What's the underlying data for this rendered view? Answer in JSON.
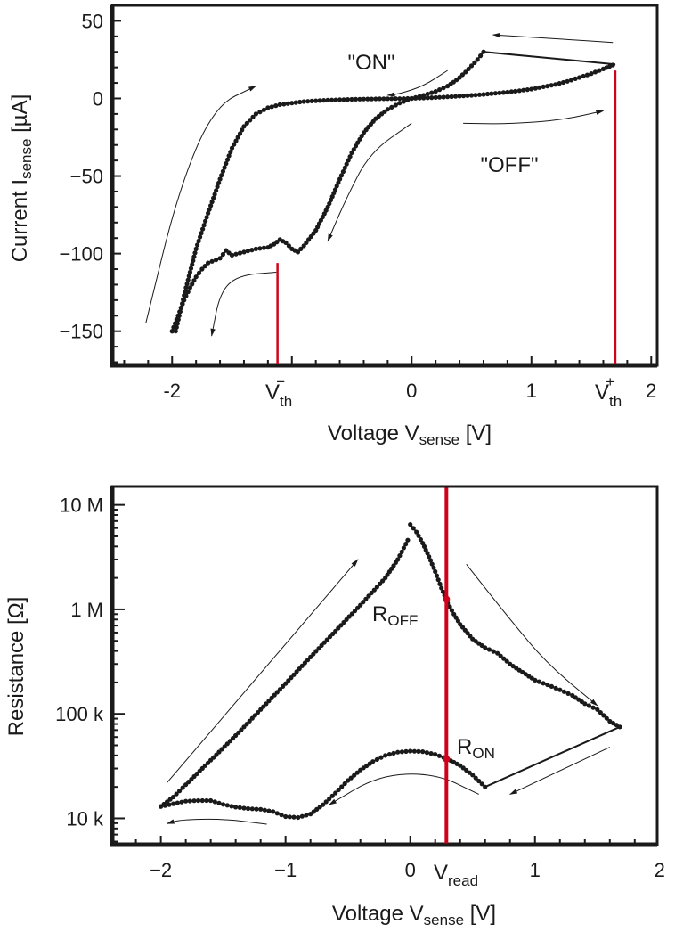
{
  "chart_data": [
    {
      "type": "line",
      "title": "",
      "xlabel": {
        "main": "Voltage V",
        "sub": "sense",
        "unit": " [V]"
      },
      "ylabel": {
        "main": "Current I",
        "sub": "sense",
        "unit": " [µA]"
      },
      "xlim": [
        -2.5,
        2.05
      ],
      "ylim": [
        -172,
        60
      ],
      "yscale": "linear",
      "xticks": [
        {
          "value": -2,
          "label": "-2"
        },
        {
          "value": 0,
          "label": "0"
        },
        {
          "value": 1,
          "label": "1"
        },
        {
          "value": 2,
          "label": "2"
        }
      ],
      "xminor_step": 0.2,
      "yticks": [
        {
          "value": 50,
          "label": "50"
        },
        {
          "value": 0,
          "label": "0"
        },
        {
          "value": -50,
          "label": "−50"
        },
        {
          "value": -100,
          "label": "−100"
        },
        {
          "value": -150,
          "label": "−150"
        }
      ],
      "yminor_step": 10,
      "vlines": [
        {
          "name": "V_th_minus",
          "x": -1.12,
          "ymin": -172,
          "ymax": -106,
          "label_main": "V",
          "label_sub": "th",
          "label_sup": "−",
          "color": "#d0021b"
        },
        {
          "name": "V_th_plus",
          "x": 1.7,
          "ymin": -172,
          "ymax": 18,
          "label_main": "V",
          "label_sub": "th",
          "label_sup": "+",
          "color": "#d0021b"
        }
      ],
      "series": [
        {
          "name": "sweep",
          "color": "#1a1a1a",
          "x": [
            0.0,
            0.1,
            0.2,
            0.3,
            0.4,
            0.5,
            0.6,
            0.7,
            0.8,
            0.9,
            1.0,
            1.1,
            1.2,
            1.3,
            1.4,
            1.5,
            1.6,
            1.68,
            1.7,
            0.6,
            0.55,
            0.5,
            0.45,
            0.4,
            0.35,
            0.3,
            0.2,
            0.1,
            0.0,
            -0.1,
            -0.2,
            -0.3,
            -0.4,
            -0.5,
            -0.6,
            -0.7,
            -0.8,
            -0.9,
            -0.95,
            -1.0,
            -1.05,
            -1.1,
            -1.15,
            -1.2,
            -1.3,
            -1.4,
            -1.5,
            -1.55,
            -1.6,
            -1.7,
            -1.75,
            -1.8,
            -1.85,
            -1.9,
            -1.95,
            -2.0,
            -2.0,
            -1.97,
            -1.94,
            -1.9,
            -1.85,
            -1.8,
            -1.7,
            -1.6,
            -1.5,
            -1.4,
            -1.3,
            -1.2,
            -1.1,
            -1.0,
            -0.9,
            -0.8,
            -0.7,
            -0.6,
            -0.5,
            -0.4,
            -0.3,
            -0.2,
            -0.1,
            0.0
          ],
          "y": [
            0,
            0.3,
            0.6,
            1,
            1.5,
            2,
            2.6,
            3.3,
            4,
            5,
            6,
            7.5,
            9,
            11,
            13.5,
            16,
            19,
            21.5,
            22,
            30,
            25,
            21,
            17,
            13.5,
            10.5,
            8,
            4.5,
            2,
            0,
            -3,
            -7,
            -13,
            -22,
            -35,
            -52,
            -70,
            -85,
            -95,
            -99,
            -97,
            -93,
            -91,
            -94,
            -96,
            -97,
            -99,
            -101,
            -98,
            -103,
            -106,
            -110,
            -115,
            -122,
            -130,
            -140,
            -150,
            -150,
            -150,
            -140,
            -127,
            -112,
            -97,
            -74,
            -52,
            -32,
            -18,
            -10,
            -6,
            -4,
            -3,
            -2,
            -1.5,
            -1.1,
            -0.8,
            -0.6,
            -0.4,
            -0.3,
            -0.2,
            -0.1,
            0
          ]
        }
      ],
      "annotations": [
        {
          "text": "\"ON\"",
          "x": 0.57,
          "y": 22
        },
        {
          "text": "\"OFF\"",
          "x": 0.6,
          "y": -42
        }
      ],
      "arrows": [
        {
          "x": [
            -2.22,
            -1.95,
            -1.65,
            -1.3
          ],
          "y": [
            -145,
            -60,
            -5,
            8
          ]
        },
        {
          "x": [
            0.3,
            0.1,
            -0.1,
            -0.2
          ],
          "y": [
            18,
            8,
            3,
            2
          ]
        },
        {
          "x": [
            1.68,
            1.3,
            0.9,
            0.68
          ],
          "y": [
            36,
            38,
            40,
            41
          ]
        },
        {
          "x": [
            0.43,
            0.8,
            1.25,
            1.6
          ],
          "y": [
            -16,
            -16.5,
            -14,
            -8
          ]
        },
        {
          "x": [
            0.0,
            -0.35,
            -0.55,
            -0.7
          ],
          "y": [
            -16,
            -35,
            -65,
            -92
          ]
        },
        {
          "x": [
            -1.13,
            -1.45,
            -1.6,
            -1.67
          ],
          "y": [
            -112,
            -114,
            -125,
            -153
          ]
        }
      ]
    },
    {
      "type": "line",
      "title": "",
      "xlabel": {
        "main": "Voltage V",
        "sub": "sense",
        "unit": " [V]"
      },
      "ylabel": {
        "main": "Resistance [Ω]",
        "sub": "",
        "unit": ""
      },
      "xlim": [
        -2.39,
        1.98
      ],
      "ylim": [
        5600,
        15000000
      ],
      "yscale": "log",
      "xticks": [
        {
          "value": -2,
          "label": "−2"
        },
        {
          "value": -1,
          "label": "−1"
        },
        {
          "value": 0,
          "label": "0"
        },
        {
          "value": 1,
          "label": "1"
        },
        {
          "value": 2,
          "label": "2"
        }
      ],
      "xminor_step": 0.2,
      "yticks": [
        {
          "value": 10000000,
          "label": "10 M"
        },
        {
          "value": 1000000,
          "label": "1 M"
        },
        {
          "value": 100000,
          "label": "100 k"
        },
        {
          "value": 10000,
          "label": "10 k"
        }
      ],
      "vlines": [
        {
          "name": "V_read",
          "x": 0.29,
          "ymin": 5600,
          "ymax": 15000000,
          "label_main": "V",
          "label_sub": "read",
          "label_sup": "",
          "color": "#d0021b"
        }
      ],
      "markers": [
        {
          "name": "R_OFF_point",
          "x": 0.29,
          "y": 1250000,
          "color": "#d0021b"
        },
        {
          "name": "R_ON_point",
          "x": 0.29,
          "y": 37000,
          "color": "#d0021b"
        }
      ],
      "series": [
        {
          "name": "off_branch",
          "color": "#1a1a1a",
          "x": [
            -2.0,
            -1.9,
            -1.8,
            -1.6,
            -1.4,
            -1.2,
            -1.0,
            -0.8,
            -0.6,
            -0.4,
            -0.2,
            -0.1,
            -0.02
          ],
          "y": [
            13000,
            16000,
            21000,
            36000,
            62000,
            110000,
            195000,
            350000,
            620000,
            1100000,
            2000000,
            3000000,
            4600000
          ]
        },
        {
          "name": "off_return",
          "color": "#1a1a1a",
          "x": [
            0.0,
            0.05,
            0.1,
            0.15,
            0.2,
            0.25,
            0.3,
            0.35,
            0.4,
            0.5,
            0.6,
            0.7,
            0.8,
            0.9,
            1.0,
            1.1,
            1.2,
            1.3,
            1.4,
            1.5,
            1.6,
            1.68
          ],
          "y": [
            6500000,
            5500000,
            4300000,
            3200000,
            2300000,
            1600000,
            1150000,
            900000,
            720000,
            520000,
            430000,
            380000,
            300000,
            250000,
            210000,
            190000,
            170000,
            150000,
            125000,
            110000,
            85000,
            75000
          ]
        },
        {
          "name": "on_branch",
          "color": "#1a1a1a",
          "x": [
            1.68,
            0.6,
            0.5,
            0.4,
            0.3,
            0.2,
            0.1,
            0.0,
            -0.1,
            -0.2,
            -0.3,
            -0.4,
            -0.5,
            -0.6,
            -0.7,
            -0.8,
            -0.9,
            -1.0,
            -1.1,
            -1.2,
            -1.3,
            -1.4,
            -1.5,
            -1.6,
            -1.7,
            -1.8,
            -1.9,
            -2.0
          ],
          "y": [
            75000,
            20000,
            26000,
            32000,
            37000,
            41000,
            43500,
            44000,
            43000,
            40000,
            35000,
            29000,
            23000,
            17500,
            13500,
            11000,
            10200,
            10400,
            11600,
            12200,
            12400,
            12800,
            13600,
            14800,
            14800,
            14600,
            13800,
            13000
          ]
        }
      ],
      "annotations": [
        {
          "text_main": "R",
          "text_sub": "OFF",
          "x": -0.15,
          "y": 700000
        },
        {
          "text_main": "R",
          "text_sub": "ON",
          "x": 0.38,
          "y": 40000
        }
      ],
      "arrows": [
        {
          "x": [
            -1.95,
            -0.42
          ],
          "y": [
            22000,
            3000000
          ]
        },
        {
          "x": [
            0.45,
            0.8,
            1.1,
            1.5
          ],
          "y": [
            2700000,
            800000,
            300000,
            120000
          ]
        },
        {
          "x": [
            1.6,
            0.8
          ],
          "y": [
            48000,
            17000
          ]
        },
        {
          "x": [
            0.55,
            0.2,
            -0.25,
            -0.65
          ],
          "y": [
            17000,
            27000,
            26000,
            13500
          ]
        },
        {
          "x": [
            -1.15,
            -1.5,
            -1.85,
            -1.95
          ],
          "y": [
            8800,
            9900,
            9700,
            8900
          ]
        }
      ]
    }
  ]
}
